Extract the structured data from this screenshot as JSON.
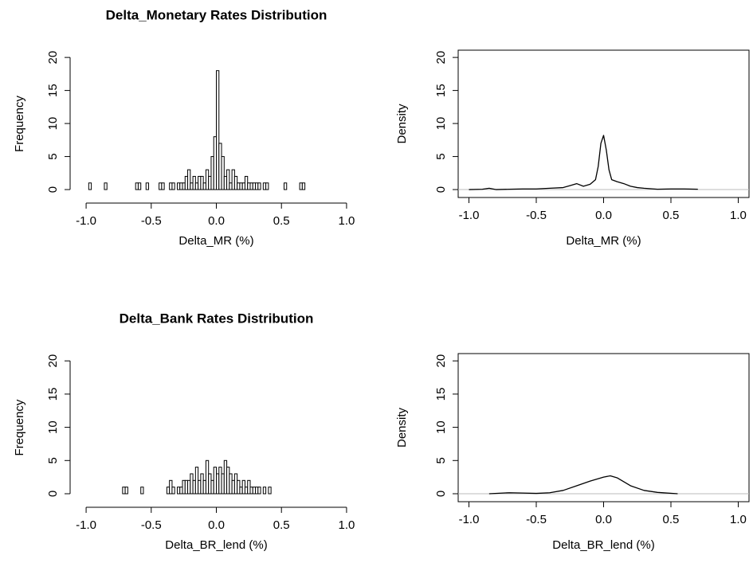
{
  "chart_data": [
    {
      "type": "histogram",
      "title": "Delta_Monetary Rates Distribution",
      "xlabel": "Delta_MR (%)",
      "ylabel": "Frequency",
      "bins": [
        -0.98,
        -0.96,
        -0.94,
        -0.92,
        -0.9,
        -0.88,
        -0.86,
        -0.84,
        -0.82,
        -0.8,
        -0.78,
        -0.76,
        -0.74,
        -0.72,
        -0.7,
        -0.68,
        -0.66,
        -0.64,
        -0.62,
        -0.6,
        -0.58,
        -0.56,
        -0.54,
        -0.52,
        -0.5,
        -0.48,
        -0.46,
        -0.44,
        -0.42,
        -0.4,
        -0.38,
        -0.36,
        -0.34,
        -0.32,
        -0.3,
        -0.28,
        -0.26,
        -0.24,
        -0.22,
        -0.2,
        -0.18,
        -0.16,
        -0.14,
        -0.12,
        -0.1,
        -0.08,
        -0.06,
        -0.04,
        -0.02,
        0,
        0.02,
        0.04,
        0.06,
        0.08,
        0.1,
        0.12,
        0.14,
        0.16,
        0.18,
        0.2,
        0.22,
        0.24,
        0.26,
        0.28,
        0.3,
        0.32,
        0.34,
        0.36,
        0.38,
        0.4,
        0.42,
        0.44,
        0.46,
        0.48,
        0.5,
        0.52,
        0.54,
        0.56,
        0.58,
        0.6,
        0.62,
        0.64,
        0.66,
        0.68
      ],
      "counts": [
        1,
        0,
        0,
        0,
        0,
        0,
        1,
        0,
        0,
        0,
        0,
        0,
        0,
        0,
        0,
        0,
        0,
        0,
        1,
        1,
        0,
        0,
        1,
        0,
        0,
        0,
        0,
        1,
        1,
        0,
        0,
        1,
        1,
        0,
        1,
        1,
        1,
        2,
        3,
        1,
        2,
        1,
        2,
        2,
        1,
        3,
        2,
        5,
        8,
        18,
        7,
        5,
        2,
        3,
        1,
        3,
        2,
        1,
        1,
        1,
        2,
        1,
        1,
        1,
        1,
        1,
        0,
        1,
        1,
        0,
        0,
        0,
        0,
        0,
        0,
        1,
        0,
        0,
        0,
        0,
        0,
        1,
        1
      ],
      "color": "#000000",
      "xlim": [
        -1.08,
        1.08
      ],
      "ylim": [
        -1.2,
        21.1
      ],
      "xticks": [
        {
          "value": -1,
          "label": "-1.0"
        },
        -0.5,
        {
          "value": 0,
          "label": "0.0"
        },
        0.5,
        {
          "value": 1,
          "label": "1.0"
        }
      ],
      "yticks": [
        0,
        5,
        10,
        15,
        20
      ]
    },
    {
      "type": "density",
      "xlabel": "Delta_MR (%)",
      "ylabel": "Density",
      "x": [
        -1.0,
        -0.9,
        -0.85,
        -0.8,
        -0.7,
        -0.6,
        -0.5,
        -0.4,
        -0.3,
        -0.25,
        -0.2,
        -0.15,
        -0.1,
        -0.06,
        -0.04,
        -0.02,
        0,
        0.02,
        0.04,
        0.06,
        0.1,
        0.15,
        0.2,
        0.25,
        0.3,
        0.4,
        0.5,
        0.6,
        0.7
      ],
      "y": [
        0,
        0.05,
        0.2,
        0,
        0.05,
        0.1,
        0.1,
        0.2,
        0.3,
        0.6,
        0.9,
        0.5,
        0.8,
        1.5,
        3.5,
        7,
        8.2,
        6,
        3,
        1.5,
        1.2,
        0.9,
        0.5,
        0.3,
        0.2,
        0.05,
        0.1,
        0.1,
        0.05
      ],
      "color": "#000000",
      "zero_line": true,
      "xlim": [
        -1.08,
        1.08
      ],
      "ylim": [
        -1.2,
        21.1
      ],
      "xticks": [
        {
          "value": -1,
          "label": "-1.0"
        },
        -0.5,
        {
          "value": 0,
          "label": "0.0"
        },
        0.5,
        {
          "value": 1,
          "label": "1.0"
        }
      ],
      "yticks": [
        0,
        5,
        10,
        15,
        20
      ]
    },
    {
      "type": "histogram",
      "title": "Delta_Bank Rates Distribution",
      "xlabel": "Delta_BR_lend (%)",
      "ylabel": "Frequency",
      "bins": [
        -0.72,
        -0.7,
        -0.68,
        -0.66,
        -0.64,
        -0.62,
        -0.6,
        -0.58,
        -0.56,
        -0.54,
        -0.52,
        -0.5,
        -0.48,
        -0.46,
        -0.44,
        -0.42,
        -0.4,
        -0.38,
        -0.36,
        -0.34,
        -0.32,
        -0.3,
        -0.28,
        -0.26,
        -0.24,
        -0.22,
        -0.2,
        -0.18,
        -0.16,
        -0.14,
        -0.12,
        -0.1,
        -0.08,
        -0.06,
        -0.04,
        -0.02,
        0,
        0.02,
        0.04,
        0.06,
        0.08,
        0.1,
        0.12,
        0.14,
        0.16,
        0.18,
        0.2,
        0.22,
        0.24,
        0.26,
        0.28,
        0.3,
        0.32,
        0.34,
        0.36,
        0.38,
        0.4,
        0.42
      ],
      "counts": [
        1,
        1,
        0,
        0,
        0,
        0,
        0,
        1,
        0,
        0,
        0,
        0,
        0,
        0,
        0,
        0,
        0,
        1,
        2,
        1,
        0,
        1,
        1,
        2,
        2,
        2,
        3,
        2,
        4,
        2,
        3,
        2,
        5,
        3,
        2,
        4,
        3,
        4,
        3,
        5,
        4,
        3,
        2,
        3,
        2,
        1,
        2,
        1,
        2,
        1,
        1,
        1,
        1,
        0,
        1,
        0,
        1
      ],
      "color": "#000000",
      "xlim": [
        -1.08,
        1.08
      ],
      "ylim": [
        -1.2,
        21.1
      ],
      "xticks": [
        {
          "value": -1,
          "label": "-1.0"
        },
        -0.5,
        {
          "value": 0,
          "label": "0.0"
        },
        0.5,
        {
          "value": 1,
          "label": "1.0"
        }
      ],
      "yticks": [
        0,
        5,
        10,
        15,
        20
      ]
    },
    {
      "type": "density",
      "xlabel": "Delta_BR_lend (%)",
      "ylabel": "Density",
      "x": [
        -0.85,
        -0.7,
        -0.6,
        -0.5,
        -0.4,
        -0.3,
        -0.2,
        -0.1,
        0,
        0.05,
        0.1,
        0.2,
        0.3,
        0.4,
        0.55
      ],
      "y": [
        0,
        0.15,
        0.1,
        0.05,
        0.15,
        0.5,
        1.2,
        1.9,
        2.5,
        2.7,
        2.4,
        1.2,
        0.5,
        0.2,
        0
      ],
      "color": "#000000",
      "zero_line": true,
      "xlim": [
        -1.08,
        1.08
      ],
      "ylim": [
        -1.2,
        21.1
      ],
      "xticks": [
        {
          "value": -1,
          "label": "-1.0"
        },
        -0.5,
        {
          "value": 0,
          "label": "0.0"
        },
        0.5,
        {
          "value": 1,
          "label": "1.0"
        }
      ],
      "yticks": [
        0,
        5,
        10,
        15,
        20
      ]
    }
  ]
}
